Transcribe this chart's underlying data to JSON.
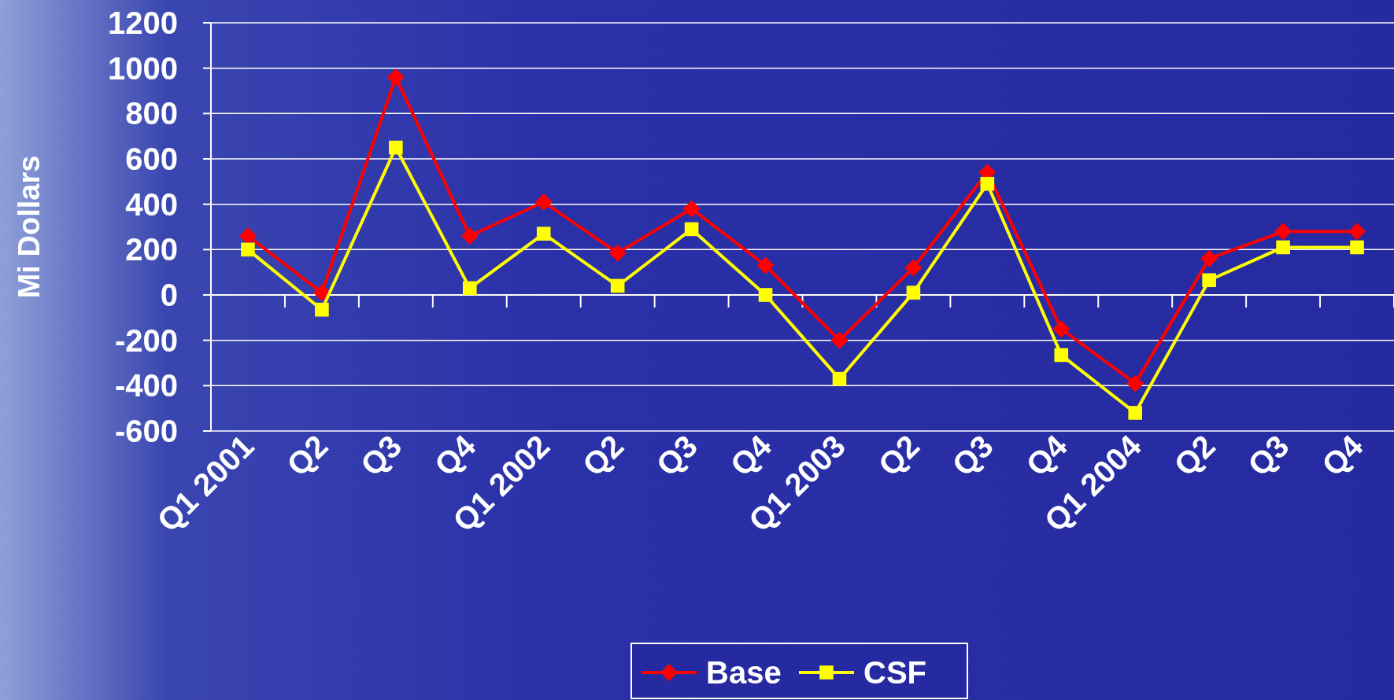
{
  "chart_data": {
    "type": "line",
    "ylabel": "Mi Dollars",
    "categories": [
      "Q1 2001",
      "Q2",
      "Q3",
      "Q4",
      "Q1 2002",
      "Q2",
      "Q3",
      "Q4",
      "Q1 2003",
      "Q2",
      "Q3",
      "Q4",
      "Q1 2004",
      "Q2",
      "Q3",
      "Q4"
    ],
    "series": [
      {
        "name": "Base",
        "color": "#ff0000",
        "marker": "diamond",
        "values": [
          260,
          10,
          960,
          260,
          410,
          185,
          380,
          130,
          -200,
          120,
          540,
          -150,
          -390,
          160,
          280,
          280
        ]
      },
      {
        "name": "CSF",
        "color": "#ffff00",
        "marker": "square",
        "values": [
          200,
          -65,
          650,
          30,
          270,
          40,
          290,
          0,
          -370,
          10,
          490,
          -265,
          -520,
          65,
          210,
          210
        ]
      }
    ],
    "ylim": [
      -600,
      1200
    ],
    "yticks": [
      -600,
      -400,
      -200,
      0,
      200,
      400,
      600,
      800,
      1000,
      1200
    ],
    "grid": "y",
    "legend": "bottom",
    "line_style": "solid"
  }
}
